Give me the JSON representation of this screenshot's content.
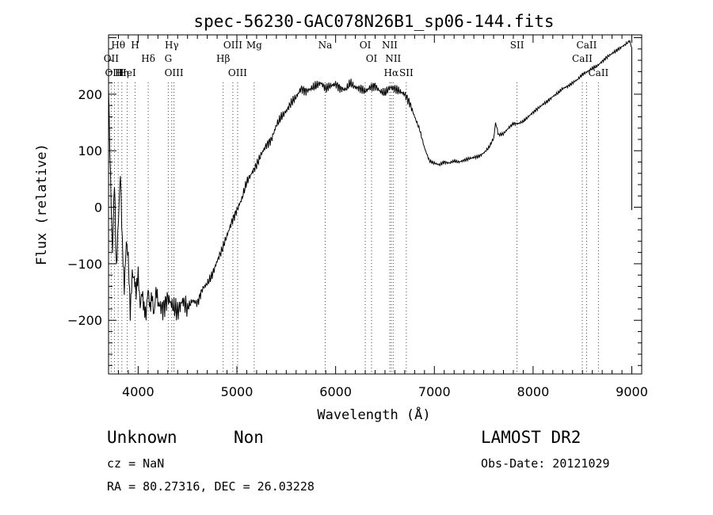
{
  "chart_data": {
    "type": "line",
    "title": "spec-56230-GAC078N26B1_sp06-144.fits",
    "xlabel": "Wavelength (Å)",
    "ylabel": "Flux (relative)",
    "xlim": [
      3700,
      9100
    ],
    "ylim": [
      -295,
      305
    ],
    "x_ticks": [
      4000,
      5000,
      6000,
      7000,
      8000,
      9000
    ],
    "y_ticks": [
      -200,
      -100,
      0,
      100,
      200
    ],
    "grid": false,
    "series": [
      {
        "x": [
          3700,
          3720,
          3740,
          3760,
          3780,
          3800,
          3820,
          3840,
          3860,
          3880,
          3900,
          3920,
          3940,
          3960,
          3980,
          4000,
          4020,
          4040,
          4060,
          4080,
          4100,
          4120,
          4140,
          4160,
          4180,
          4200,
          4250,
          4300,
          4350,
          4400,
          4450,
          4500,
          4550,
          4600,
          4650,
          4700,
          4750,
          4800,
          4850,
          4900,
          4950,
          5000,
          5050,
          5100,
          5150,
          5200,
          5250,
          5300,
          5350,
          5400,
          5450,
          5500,
          5550,
          5600,
          5650,
          5700,
          5750,
          5800,
          5850,
          5900,
          5950,
          6000,
          6050,
          6100,
          6150,
          6200,
          6250,
          6300,
          6350,
          6400,
          6450,
          6500,
          6550,
          6600,
          6650,
          6700,
          6750,
          6800,
          6850,
          6900,
          6950,
          7000,
          7050,
          7100,
          7150,
          7200,
          7250,
          7300,
          7350,
          7400,
          7450,
          7500,
          7550,
          7600,
          7620,
          7650,
          7700,
          7750,
          7800,
          7850,
          7900,
          7950,
          8000,
          8050,
          8100,
          8150,
          8200,
          8250,
          8300,
          8350,
          8400,
          8450,
          8500,
          8550,
          8600,
          8650,
          8700,
          8750,
          8800,
          8850,
          8900,
          8950,
          8980,
          9000
        ],
        "y": [
          210,
          60,
          -80,
          40,
          -120,
          -20,
          70,
          -60,
          -150,
          -70,
          -90,
          -180,
          -110,
          -130,
          -160,
          -120,
          -170,
          -140,
          -180,
          -200,
          -150,
          -175,
          -145,
          -190,
          -155,
          -170,
          -180,
          -160,
          -175,
          -185,
          -165,
          -178,
          -165,
          -170,
          -145,
          -135,
          -120,
          -95,
          -75,
          -50,
          -25,
          -5,
          15,
          45,
          60,
          75,
          95,
          110,
          120,
          145,
          160,
          170,
          185,
          195,
          210,
          205,
          210,
          215,
          220,
          210,
          215,
          218,
          210,
          208,
          220,
          212,
          210,
          205,
          212,
          215,
          205,
          202,
          212,
          210,
          205,
          200,
          185,
          160,
          138,
          105,
          82,
          78,
          75,
          80,
          78,
          82,
          80,
          83,
          86,
          88,
          90,
          96,
          105,
          122,
          150,
          128,
          130,
          140,
          148,
          148,
          152,
          160,
          168,
          175,
          182,
          188,
          196,
          202,
          210,
          214,
          220,
          226,
          235,
          240,
          246,
          250,
          258,
          266,
          272,
          278,
          284,
          290,
          295,
          280
        ]
      }
    ],
    "line_markers": [
      {
        "label": "Hθ",
        "x": 3798
      },
      {
        "label": "OII",
        "x": 3727
      },
      {
        "label": "OIII",
        "x": 3760
      },
      {
        "label": "H",
        "x": 3969
      },
      {
        "label": "HeI",
        "x": 3889
      },
      {
        "label": "Hη",
        "x": 3835
      },
      {
        "label": "Hδ",
        "x": 4102
      },
      {
        "label": "Hγ",
        "x": 4340
      },
      {
        "label": "G",
        "x": 4305
      },
      {
        "label": "OIII",
        "x": 4363
      },
      {
        "label": "OIII",
        "x": 4959
      },
      {
        "label": "Hβ",
        "x": 4861
      },
      {
        "label": "OIII",
        "x": 5007
      },
      {
        "label": "Mg",
        "x": 5175
      },
      {
        "label": "Na",
        "x": 5894
      },
      {
        "label": "NII",
        "x": 6548
      },
      {
        "label": "OI",
        "x": 6300
      },
      {
        "label": "NII",
        "x": 6583
      },
      {
        "label": "OI",
        "x": 6364
      },
      {
        "label": "Hα",
        "x": 6563
      },
      {
        "label": "SII",
        "x": 6716
      },
      {
        "label": "SII",
        "x": 7837
      },
      {
        "label": "CaII",
        "x": 8542
      },
      {
        "label": "CaII",
        "x": 8498
      },
      {
        "label": "CaII",
        "x": 8662
      }
    ]
  },
  "info": {
    "class": "Unknown",
    "subclass": "Non",
    "survey": "LAMOST DR2",
    "cz": "cz = NaN",
    "obs_date": "Obs-Date: 20121029",
    "coords": "RA =  80.27316, DEC =  26.03228"
  }
}
